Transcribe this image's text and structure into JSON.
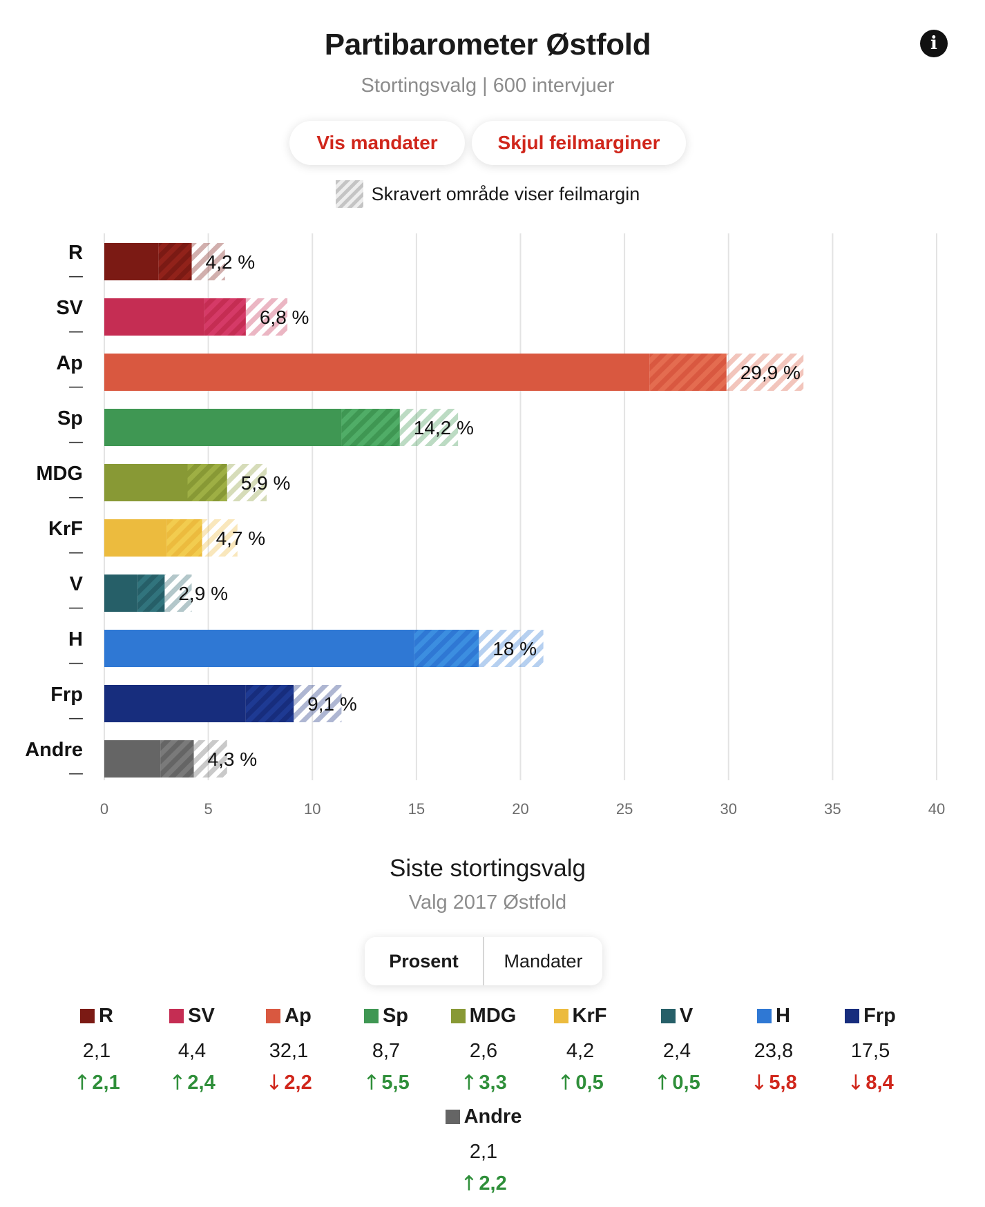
{
  "header": {
    "title": "Partibarometer Østfold",
    "subtitle": "Stortingsvalg | 600 intervjuer"
  },
  "buttons": {
    "mandater": "Vis mandater",
    "feilmarginer": "Skjul feilmarginer"
  },
  "hatch_legend": "Skravert område viser feilmargin",
  "chart_data": {
    "type": "bar",
    "orientation": "horizontal",
    "categories": [
      "R",
      "SV",
      "Ap",
      "Sp",
      "MDG",
      "KrF",
      "V",
      "H",
      "Frp",
      "Andre"
    ],
    "values": [
      4.2,
      6.8,
      29.9,
      14.2,
      5.9,
      4.7,
      2.9,
      18,
      9.1,
      4.3
    ],
    "value_labels": [
      "4,2 %",
      "6,8 %",
      "29,9 %",
      "14,2 %",
      "5,9 %",
      "4,7 %",
      "2,9 %",
      "18 %",
      "9,1 %",
      "4,3 %"
    ],
    "error_low": [
      2.6,
      4.8,
      26.2,
      11.4,
      4.0,
      3.0,
      1.6,
      14.9,
      6.8,
      2.7
    ],
    "error_high": [
      5.8,
      8.8,
      33.6,
      17.0,
      7.8,
      6.4,
      4.2,
      21.1,
      11.4,
      5.9
    ],
    "colors": [
      "#7b1a14",
      "#c52d53",
      "#d95840",
      "#3f9753",
      "#889935",
      "#ecbb3e",
      "#265f68",
      "#2f78d4",
      "#172d7d",
      "#656565"
    ],
    "row_marker": "—",
    "xlim": [
      0,
      40
    ],
    "xticks": [
      0,
      5,
      10,
      15,
      20,
      25,
      30,
      35,
      40
    ],
    "grid": true
  },
  "previous": {
    "title": "Siste stortingsvalg",
    "subtitle": "Valg 2017 Østfold",
    "tabs": [
      "Prosent",
      "Mandater"
    ],
    "active_tab": "Prosent",
    "up_arrow": "↑",
    "down_arrow": "↓",
    "results": [
      {
        "party": "R",
        "color": "#7b1a14",
        "value": "2,1",
        "diff": "2,1",
        "dir": "up"
      },
      {
        "party": "SV",
        "color": "#c52d53",
        "value": "4,4",
        "diff": "2,4",
        "dir": "up"
      },
      {
        "party": "Ap",
        "color": "#d95840",
        "value": "32,1",
        "diff": "2,2",
        "dir": "down"
      },
      {
        "party": "Sp",
        "color": "#3f9753",
        "value": "8,7",
        "diff": "5,5",
        "dir": "up"
      },
      {
        "party": "MDG",
        "color": "#889935",
        "value": "2,6",
        "diff": "3,3",
        "dir": "up"
      },
      {
        "party": "KrF",
        "color": "#ecbb3e",
        "value": "4,2",
        "diff": "0,5",
        "dir": "up"
      },
      {
        "party": "V",
        "color": "#265f68",
        "value": "2,4",
        "diff": "0,5",
        "dir": "up"
      },
      {
        "party": "H",
        "color": "#2f78d4",
        "value": "23,8",
        "diff": "5,8",
        "dir": "down"
      },
      {
        "party": "Frp",
        "color": "#172d7d",
        "value": "17,5",
        "diff": "8,4",
        "dir": "down"
      },
      {
        "party": "Andre",
        "color": "#656565",
        "value": "2,1",
        "diff": "2,2",
        "dir": "up"
      }
    ]
  }
}
